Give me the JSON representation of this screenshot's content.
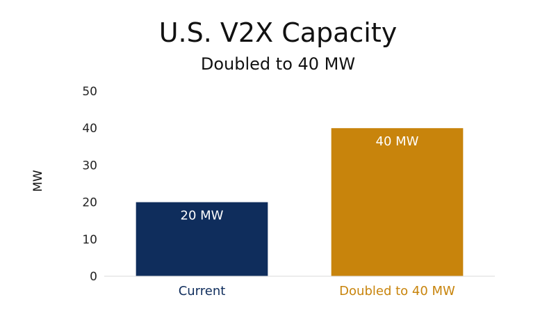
{
  "chart_data": {
    "type": "bar",
    "title": "U.S. V2X Capacity",
    "subtitle": "Doubled to 40 MW",
    "xlabel": "",
    "ylabel": "MW",
    "ylim": [
      0,
      50
    ],
    "yticks": [
      0,
      10,
      20,
      30,
      40,
      50
    ],
    "categories": [
      "Current",
      "Doubled to 40 MW"
    ],
    "values": [
      20,
      40
    ],
    "data_labels": [
      "20 MW",
      "40 MW"
    ],
    "colors": [
      "#0f2d5c",
      "#c8840c"
    ],
    "grid": false,
    "legend": "none"
  }
}
